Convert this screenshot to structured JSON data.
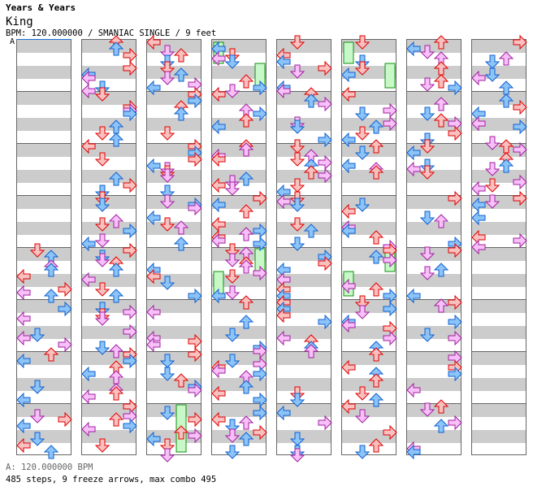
{
  "header": {
    "artist": "Years & Years",
    "title": "King",
    "meta": "BPM: 120.000000 / SMANIAC SINGLE / 9 feet",
    "bpm_marker": "A"
  },
  "footer": {
    "bpm_info": "A: 120.000000 BPM",
    "stats": "485 steps, 9 freeze arrows, max combo 495"
  },
  "chart": {
    "columns": 8,
    "measures_per_column": 8,
    "steps": 485,
    "freeze_arrows": 9,
    "colors": {
      "quarter_fill": "#f9c0c0",
      "quarter_stroke": "#e00000",
      "eighth_fill": "#8cc4f8",
      "eighth_stroke": "#1060d0",
      "sixteenth_fill": "#f8c0f8",
      "sixteenth_stroke": "#a020a0",
      "freeze_fill": "#c8f8c8",
      "freeze_stroke": "#109010",
      "bpm_marker": "#1a6fd6"
    }
  }
}
